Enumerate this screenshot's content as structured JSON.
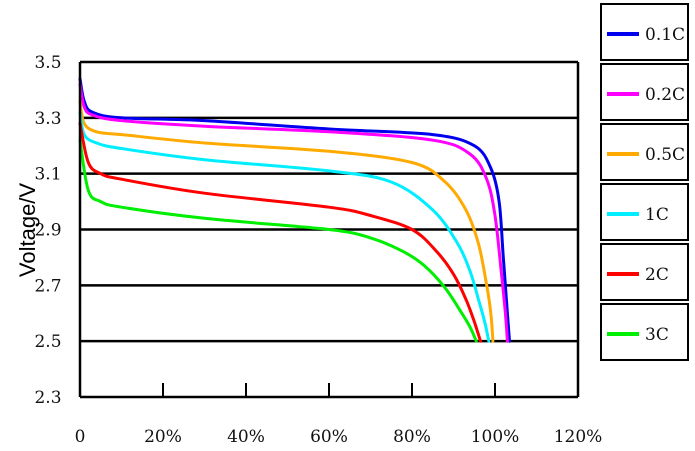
{
  "chart_data": {
    "type": "line",
    "title": "",
    "xlabel": "",
    "ylabel": "Voltage/V",
    "xlim": [
      0,
      120
    ],
    "ylim": [
      2.3,
      3.5
    ],
    "x_ticks": [
      "0",
      "20%",
      "40%",
      "60%",
      "80%",
      "100%",
      "120%"
    ],
    "y_ticks": [
      "2.3",
      "2.5",
      "2.7",
      "2.9",
      "3.1",
      "3.3",
      "3.5"
    ],
    "grid": "horizontal",
    "legend_position": "right",
    "series": [
      {
        "name": "0.1C",
        "color": "#0000ee",
        "points": [
          [
            0,
            3.44
          ],
          [
            1,
            3.36
          ],
          [
            3,
            3.32
          ],
          [
            10,
            3.3
          ],
          [
            30,
            3.29
          ],
          [
            60,
            3.26
          ],
          [
            85,
            3.24
          ],
          [
            95,
            3.2
          ],
          [
            99,
            3.12
          ],
          [
            101,
            3.0
          ],
          [
            102,
            2.8
          ],
          [
            103,
            2.6
          ],
          [
            103.5,
            2.5
          ]
        ]
      },
      {
        "name": "0.2C",
        "color": "#ff00ff",
        "points": [
          [
            0,
            3.42
          ],
          [
            1,
            3.34
          ],
          [
            3,
            3.31
          ],
          [
            10,
            3.29
          ],
          [
            30,
            3.27
          ],
          [
            60,
            3.25
          ],
          [
            85,
            3.22
          ],
          [
            94,
            3.17
          ],
          [
            98,
            3.08
          ],
          [
            100,
            2.95
          ],
          [
            101.5,
            2.75
          ],
          [
            102.5,
            2.6
          ],
          [
            103,
            2.5
          ]
        ]
      },
      {
        "name": "0.5C",
        "color": "#ffaa00",
        "points": [
          [
            0,
            3.36
          ],
          [
            1,
            3.28
          ],
          [
            4,
            3.25
          ],
          [
            10,
            3.24
          ],
          [
            30,
            3.21
          ],
          [
            60,
            3.18
          ],
          [
            80,
            3.14
          ],
          [
            88,
            3.07
          ],
          [
            93,
            2.97
          ],
          [
            96,
            2.85
          ],
          [
            98,
            2.7
          ],
          [
            99,
            2.6
          ],
          [
            99.5,
            2.5
          ]
        ]
      },
      {
        "name": "1C",
        "color": "#00eeff",
        "points": [
          [
            0,
            3.32
          ],
          [
            1,
            3.24
          ],
          [
            4,
            3.21
          ],
          [
            10,
            3.19
          ],
          [
            30,
            3.15
          ],
          [
            60,
            3.11
          ],
          [
            75,
            3.07
          ],
          [
            85,
            2.97
          ],
          [
            91,
            2.85
          ],
          [
            94,
            2.75
          ],
          [
            96,
            2.65
          ],
          [
            97.5,
            2.57
          ],
          [
            98.5,
            2.5
          ]
        ]
      },
      {
        "name": "2C",
        "color": "#ff0000",
        "points": [
          [
            0,
            3.28
          ],
          [
            2,
            3.14
          ],
          [
            5,
            3.1
          ],
          [
            10,
            3.08
          ],
          [
            30,
            3.03
          ],
          [
            60,
            2.98
          ],
          [
            70,
            2.95
          ],
          [
            80,
            2.9
          ],
          [
            86,
            2.82
          ],
          [
            90,
            2.74
          ],
          [
            93,
            2.65
          ],
          [
            95,
            2.57
          ],
          [
            96.5,
            2.5
          ]
        ]
      },
      {
        "name": "3C",
        "color": "#00ee00",
        "points": [
          [
            0,
            3.22
          ],
          [
            2,
            3.04
          ],
          [
            5,
            3.0
          ],
          [
            10,
            2.98
          ],
          [
            30,
            2.94
          ],
          [
            60,
            2.9
          ],
          [
            70,
            2.87
          ],
          [
            78,
            2.82
          ],
          [
            83,
            2.77
          ],
          [
            88,
            2.69
          ],
          [
            92,
            2.6
          ],
          [
            94,
            2.55
          ],
          [
            95.5,
            2.5
          ]
        ]
      }
    ]
  }
}
